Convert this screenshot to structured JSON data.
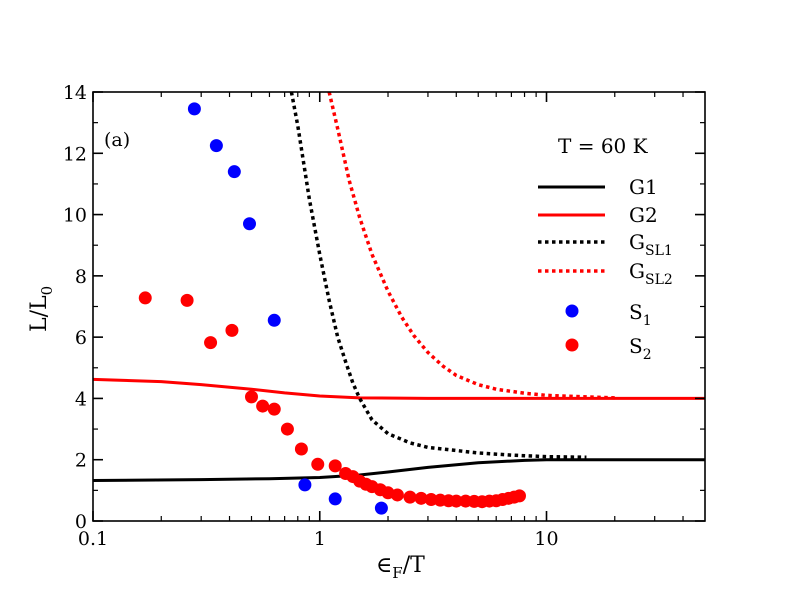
{
  "chart_data": {
    "type": "line",
    "panel_label": "(a)",
    "annotation": "T = 60 K",
    "xlabel": {
      "main": "∈",
      "sub": "F",
      "tail": "/T"
    },
    "ylabel": {
      "main": "L/L",
      "sub": "0"
    },
    "xscale": "log",
    "xlim": [
      0.1,
      50
    ],
    "ylim": [
      0,
      14
    ],
    "xticks": [
      {
        "value": 0.1,
        "label": "0.1"
      },
      {
        "value": 1,
        "label": "1"
      },
      {
        "value": 10,
        "label": "10"
      }
    ],
    "yticks": [
      0,
      2,
      4,
      6,
      8,
      10,
      12,
      14
    ],
    "grid": false,
    "legend_position": "top-right",
    "series": [
      {
        "id": "g1",
        "name": "G1",
        "legend_main": "G",
        "legend_sub": "",
        "legend_tail": "1",
        "style": "solid",
        "color": "#000000",
        "x": [
          0.1,
          0.3,
          0.6,
          1,
          1.5,
          2,
          3,
          5,
          8,
          10,
          20,
          50
        ],
        "y": [
          1.32,
          1.35,
          1.38,
          1.42,
          1.5,
          1.6,
          1.75,
          1.9,
          1.98,
          2.0,
          2.0,
          2.0
        ]
      },
      {
        "id": "g2",
        "name": "G2",
        "legend_main": "G",
        "legend_sub": "",
        "legend_tail": "2",
        "style": "solid",
        "color": "#ff0000",
        "x": [
          0.1,
          0.2,
          0.3,
          0.5,
          0.7,
          1,
          1.5,
          3,
          10,
          50
        ],
        "y": [
          4.62,
          4.55,
          4.45,
          4.3,
          4.18,
          4.08,
          4.02,
          4.0,
          4.0,
          4.0
        ]
      },
      {
        "id": "gsl1",
        "name": "GSL1",
        "legend_main": "G",
        "legend_sub": "SL1",
        "legend_tail": "",
        "style": "dotted",
        "color": "#000000",
        "x": [
          0.75,
          0.8,
          0.9,
          1.0,
          1.1,
          1.2,
          1.3,
          1.4,
          1.5,
          1.7,
          2.0,
          2.5,
          3.0,
          4.0,
          5.0,
          7.0,
          10.0,
          15.0
        ],
        "y": [
          14.0,
          12.9,
          10.5,
          8.7,
          7.2,
          6.0,
          5.2,
          4.5,
          4.0,
          3.3,
          2.85,
          2.55,
          2.4,
          2.3,
          2.22,
          2.15,
          2.1,
          2.08
        ]
      },
      {
        "id": "gsl2",
        "name": "GSL2",
        "legend_main": "G",
        "legend_sub": "SL2",
        "legend_tail": "",
        "style": "dotted",
        "color": "#ff0000",
        "x": [
          1.1,
          1.2,
          1.35,
          1.5,
          1.7,
          2.0,
          2.3,
          2.6,
          3.0,
          3.5,
          4.0,
          5.0,
          6.0,
          8.0,
          10.0,
          15.0,
          20.0
        ],
        "y": [
          14.0,
          12.8,
          11.1,
          9.9,
          8.7,
          7.5,
          6.65,
          6.05,
          5.5,
          5.05,
          4.75,
          4.45,
          4.3,
          4.17,
          4.1,
          4.05,
          4.02
        ]
      },
      {
        "id": "s1",
        "name": "S1",
        "legend_main": "S",
        "legend_sub": "1",
        "legend_tail": "",
        "style": "marker",
        "color": "#0000ff",
        "x": [
          0.28,
          0.35,
          0.42,
          0.49,
          0.63,
          0.86,
          1.17,
          1.87
        ],
        "y": [
          13.45,
          12.25,
          11.4,
          9.7,
          6.55,
          1.18,
          0.72,
          0.42
        ]
      },
      {
        "id": "s2",
        "name": "S2",
        "legend_main": "S",
        "legend_sub": "2",
        "legend_tail": "",
        "style": "marker",
        "color": "#ff0000",
        "x": [
          0.17,
          0.26,
          0.33,
          0.41,
          0.5,
          0.56,
          0.63,
          0.72,
          0.83,
          0.98,
          1.17,
          1.3,
          1.4,
          1.5,
          1.6,
          1.7,
          1.85,
          2.0,
          2.2,
          2.5,
          2.8,
          3.1,
          3.4,
          3.7,
          4.0,
          4.4,
          4.8,
          5.2,
          5.6,
          6.0,
          6.4,
          6.8,
          7.2,
          7.6
        ],
        "y": [
          7.28,
          7.2,
          5.82,
          6.22,
          4.05,
          3.75,
          3.65,
          3.0,
          2.35,
          1.85,
          1.8,
          1.55,
          1.45,
          1.3,
          1.2,
          1.12,
          1.02,
          0.92,
          0.85,
          0.78,
          0.74,
          0.7,
          0.68,
          0.66,
          0.65,
          0.65,
          0.64,
          0.63,
          0.65,
          0.66,
          0.7,
          0.74,
          0.78,
          0.82
        ]
      }
    ]
  }
}
